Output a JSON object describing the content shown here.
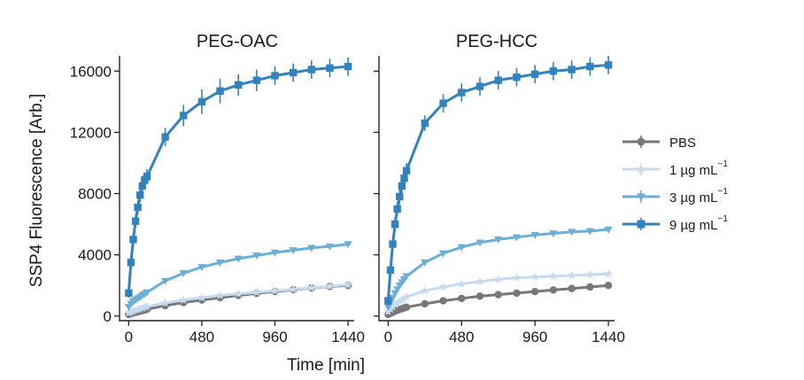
{
  "chart_data": {
    "type": "line",
    "ylabel": "SSP4 Fluorescence [Arb.]",
    "xlabel": "Time [min]",
    "ylim": [
      -300,
      17000
    ],
    "xlim": [
      -60,
      1480
    ],
    "y_ticks": [
      0,
      4000,
      8000,
      12000,
      16000
    ],
    "y_tick_labels": [
      "0",
      "4000",
      "8000",
      "12000",
      "16000"
    ],
    "x_ticks": [
      0,
      480,
      960,
      1440
    ],
    "x_tick_labels": [
      "0",
      "480",
      "960",
      "1440"
    ],
    "legend": {
      "placement": "right",
      "items": [
        {
          "series": "PBS",
          "label": "PBS",
          "sup": ""
        },
        {
          "series": "1ug",
          "label": "1 µg mL",
          "sup": "−1"
        },
        {
          "series": "3ug",
          "label": "3 µg mL",
          "sup": "−1"
        },
        {
          "series": "9ug",
          "label": "9 µg mL",
          "sup": "−1"
        }
      ]
    },
    "series_style": {
      "PBS": {
        "color": "#777777",
        "marker": "circle"
      },
      "1ug": {
        "color": "#c6dbef",
        "marker": "star"
      },
      "3ug": {
        "color": "#6baed6",
        "marker": "triangle-down"
      },
      "9ug": {
        "color": "#3182bd",
        "marker": "square"
      }
    },
    "panels": [
      {
        "title": "PEG-OAC",
        "series": [
          {
            "name": "9ug",
            "x": [
              0,
              15,
              30,
              45,
              60,
              75,
              90,
              105,
              120,
              240,
              360,
              480,
              600,
              720,
              840,
              960,
              1080,
              1200,
              1320,
              1440
            ],
            "y": [
              1500,
              3500,
              5000,
              6200,
              7100,
              7900,
              8500,
              8900,
              9100,
              11700,
              13100,
              14000,
              14700,
              15100,
              15400,
              15700,
              15900,
              16100,
              16200,
              16300
            ],
            "err": [
              300,
              350,
              400,
              400,
              450,
              450,
              450,
              500,
              500,
              600,
              700,
              800,
              800,
              700,
              700,
              600,
              600,
              600,
              600,
              600
            ]
          },
          {
            "name": "3ug",
            "x": [
              0,
              15,
              30,
              45,
              60,
              75,
              90,
              105,
              120,
              240,
              360,
              480,
              600,
              720,
              840,
              960,
              1080,
              1200,
              1320,
              1440
            ],
            "y": [
              600,
              800,
              950,
              1050,
              1150,
              1250,
              1350,
              1450,
              1550,
              2300,
              2800,
              3200,
              3500,
              3750,
              3950,
              4150,
              4300,
              4450,
              4550,
              4700
            ],
            "err": [
              100,
              100,
              100,
              100,
              100,
              100,
              120,
              120,
              120,
              150,
              150,
              150,
              150,
              150,
              150,
              150,
              150,
              150,
              150,
              150
            ]
          },
          {
            "name": "1ug",
            "x": [
              0,
              15,
              30,
              45,
              60,
              75,
              90,
              105,
              120,
              240,
              360,
              480,
              600,
              720,
              840,
              960,
              1080,
              1200,
              1320,
              1440
            ],
            "y": [
              200,
              260,
              320,
              380,
              430,
              480,
              530,
              580,
              620,
              850,
              1050,
              1200,
              1350,
              1450,
              1550,
              1650,
              1750,
              1850,
              1950,
              2050
            ],
            "err": [
              50,
              50,
              50,
              60,
              60,
              60,
              60,
              70,
              70,
              80,
              80,
              90,
              90,
              90,
              90,
              100,
              100,
              100,
              100,
              100
            ]
          },
          {
            "name": "PBS",
            "x": [
              0,
              15,
              30,
              45,
              60,
              75,
              90,
              105,
              120,
              240,
              360,
              480,
              600,
              720,
              840,
              960,
              1080,
              1200,
              1320,
              1440
            ],
            "y": [
              100,
              150,
              200,
              240,
              280,
              320,
              360,
              400,
              440,
              680,
              880,
              1050,
              1200,
              1350,
              1480,
              1600,
              1720,
              1830,
              1930,
              2000
            ],
            "err": [
              40,
              40,
              40,
              40,
              50,
              50,
              50,
              50,
              50,
              60,
              60,
              70,
              70,
              70,
              70,
              80,
              80,
              80,
              80,
              80
            ]
          }
        ]
      },
      {
        "title": "PEG-HCC",
        "series": [
          {
            "name": "9ug",
            "x": [
              0,
              15,
              30,
              45,
              60,
              75,
              90,
              105,
              120,
              240,
              360,
              480,
              600,
              720,
              840,
              960,
              1080,
              1200,
              1320,
              1440
            ],
            "y": [
              1000,
              3000,
              4700,
              6000,
              7000,
              7800,
              8500,
              9000,
              9500,
              12600,
              13900,
              14600,
              15000,
              15400,
              15600,
              15800,
              16000,
              16100,
              16300,
              16400
            ],
            "err": [
              300,
              350,
              400,
              450,
              450,
              500,
              500,
              500,
              500,
              500,
              600,
              600,
              600,
              600,
              600,
              600,
              600,
              600,
              600,
              600
            ]
          },
          {
            "name": "3ug",
            "x": [
              0,
              15,
              30,
              45,
              60,
              75,
              90,
              105,
              120,
              240,
              360,
              480,
              600,
              720,
              840,
              960,
              1080,
              1200,
              1320,
              1440
            ],
            "y": [
              600,
              900,
              1200,
              1500,
              1750,
              2000,
              2200,
              2400,
              2600,
              3500,
              4100,
              4500,
              4800,
              5000,
              5150,
              5300,
              5400,
              5500,
              5550,
              5650
            ],
            "err": [
              100,
              100,
              120,
              120,
              120,
              150,
              150,
              150,
              150,
              150,
              150,
              150,
              150,
              150,
              150,
              150,
              150,
              150,
              150,
              150
            ]
          },
          {
            "name": "1ug",
            "x": [
              0,
              15,
              30,
              45,
              60,
              75,
              90,
              105,
              120,
              240,
              360,
              480,
              600,
              720,
              840,
              960,
              1080,
              1200,
              1320,
              1440
            ],
            "y": [
              300,
              450,
              600,
              750,
              850,
              950,
              1050,
              1150,
              1250,
              1650,
              1900,
              2100,
              2250,
              2400,
              2500,
              2550,
              2600,
              2650,
              2700,
              2750
            ],
            "err": [
              60,
              60,
              70,
              70,
              80,
              80,
              80,
              90,
              90,
              100,
              100,
              110,
              110,
              110,
              110,
              120,
              120,
              120,
              120,
              120
            ]
          },
          {
            "name": "PBS",
            "x": [
              0,
              15,
              30,
              45,
              60,
              75,
              90,
              105,
              120,
              240,
              360,
              480,
              600,
              720,
              840,
              960,
              1080,
              1200,
              1320,
              1440
            ],
            "y": [
              100,
              180,
              250,
              320,
              380,
              430,
              480,
              530,
              580,
              800,
              1000,
              1150,
              1300,
              1400,
              1500,
              1600,
              1700,
              1800,
              1900,
              2000
            ],
            "err": [
              40,
              40,
              40,
              50,
              50,
              50,
              50,
              60,
              60,
              60,
              70,
              70,
              70,
              70,
              80,
              80,
              80,
              80,
              80,
              80
            ]
          }
        ]
      }
    ]
  }
}
